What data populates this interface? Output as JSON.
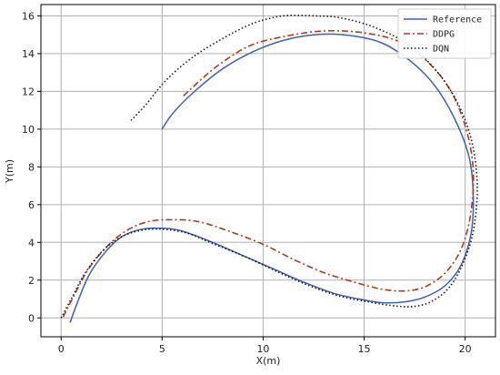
{
  "chart_data": {
    "type": "line",
    "title": "",
    "xlabel": "X(m)",
    "ylabel": "Y(m)",
    "xlim": [
      -1,
      21.5
    ],
    "ylim": [
      -1,
      16.6
    ],
    "xticks": [
      0,
      5,
      10,
      15,
      20
    ],
    "yticks": [
      0,
      2,
      4,
      6,
      8,
      10,
      12,
      14,
      16
    ],
    "grid": true,
    "legend_position": "top-right",
    "series": [
      {
        "name": "Reference",
        "style": "solid",
        "color": "#3a5fbf",
        "points": [
          [
            0.45,
            -0.25
          ],
          [
            0.8,
            0.8
          ],
          [
            1.4,
            2.3
          ],
          [
            2.2,
            3.5
          ],
          [
            3.0,
            4.3
          ],
          [
            4.0,
            4.7
          ],
          [
            5.0,
            4.75
          ],
          [
            6.0,
            4.6
          ],
          [
            7.5,
            4.0
          ],
          [
            9.0,
            3.3
          ],
          [
            10.5,
            2.6
          ],
          [
            12.0,
            1.9
          ],
          [
            13.5,
            1.3
          ],
          [
            15.0,
            0.95
          ],
          [
            16.0,
            0.8
          ],
          [
            17.0,
            0.85
          ],
          [
            18.0,
            1.1
          ],
          [
            19.0,
            1.7
          ],
          [
            19.8,
            2.8
          ],
          [
            20.3,
            4.5
          ],
          [
            20.4,
            6.5
          ],
          [
            20.2,
            8.5
          ],
          [
            19.5,
            10.5
          ],
          [
            18.5,
            12.3
          ],
          [
            17.3,
            13.6
          ],
          [
            15.8,
            14.6
          ],
          [
            14.0,
            15.0
          ],
          [
            12.5,
            15.0
          ],
          [
            11.0,
            14.7
          ],
          [
            9.5,
            14.1
          ],
          [
            8.0,
            13.2
          ],
          [
            6.5,
            11.9
          ],
          [
            5.5,
            10.8
          ],
          [
            5.0,
            10.0
          ]
        ]
      },
      {
        "name": "DDPG",
        "style": "dashdot",
        "color": "#b23a1a",
        "points": [
          [
            0.1,
            0.05
          ],
          [
            0.6,
            1.1
          ],
          [
            1.3,
            2.5
          ],
          [
            2.2,
            3.7
          ],
          [
            3.2,
            4.6
          ],
          [
            4.3,
            5.1
          ],
          [
            5.5,
            5.2
          ],
          [
            6.8,
            5.1
          ],
          [
            8.3,
            4.6
          ],
          [
            10.0,
            3.9
          ],
          [
            11.5,
            3.1
          ],
          [
            13.0,
            2.4
          ],
          [
            14.5,
            1.9
          ],
          [
            16.0,
            1.5
          ],
          [
            17.3,
            1.45
          ],
          [
            18.3,
            1.8
          ],
          [
            19.2,
            2.6
          ],
          [
            19.9,
            3.9
          ],
          [
            20.3,
            5.7
          ],
          [
            20.4,
            7.8
          ],
          [
            20.1,
            9.8
          ],
          [
            19.4,
            11.8
          ],
          [
            18.3,
            13.4
          ],
          [
            16.8,
            14.6
          ],
          [
            15.0,
            15.1
          ],
          [
            13.0,
            15.2
          ],
          [
            11.0,
            14.9
          ],
          [
            9.3,
            14.4
          ],
          [
            7.8,
            13.4
          ],
          [
            6.8,
            12.5
          ],
          [
            6.0,
            11.7
          ]
        ]
      },
      {
        "name": "DQN",
        "style": "dotted",
        "color": "#1a1a1a",
        "points": [
          [
            0.0,
            0.0
          ],
          [
            0.5,
            1.0
          ],
          [
            1.2,
            2.4
          ],
          [
            2.1,
            3.6
          ],
          [
            3.0,
            4.3
          ],
          [
            4.0,
            4.65
          ],
          [
            5.0,
            4.7
          ],
          [
            6.2,
            4.5
          ],
          [
            7.6,
            3.9
          ],
          [
            9.2,
            3.2
          ],
          [
            10.8,
            2.4
          ],
          [
            12.3,
            1.7
          ],
          [
            13.8,
            1.15
          ],
          [
            15.2,
            0.85
          ],
          [
            16.4,
            0.65
          ],
          [
            17.4,
            0.6
          ],
          [
            18.3,
            0.85
          ],
          [
            19.2,
            1.6
          ],
          [
            19.9,
            2.9
          ],
          [
            20.4,
            4.6
          ],
          [
            20.6,
            6.8
          ],
          [
            20.4,
            9.0
          ],
          [
            19.8,
            11.0
          ],
          [
            18.8,
            12.8
          ],
          [
            17.3,
            14.4
          ],
          [
            15.5,
            15.4
          ],
          [
            13.8,
            15.9
          ],
          [
            12.5,
            16.0
          ],
          [
            11.0,
            16.0
          ],
          [
            9.5,
            15.6
          ],
          [
            8.0,
            14.8
          ],
          [
            6.5,
            13.8
          ],
          [
            5.2,
            12.6
          ],
          [
            4.2,
            11.3
          ],
          [
            3.4,
            10.4
          ]
        ]
      }
    ]
  }
}
